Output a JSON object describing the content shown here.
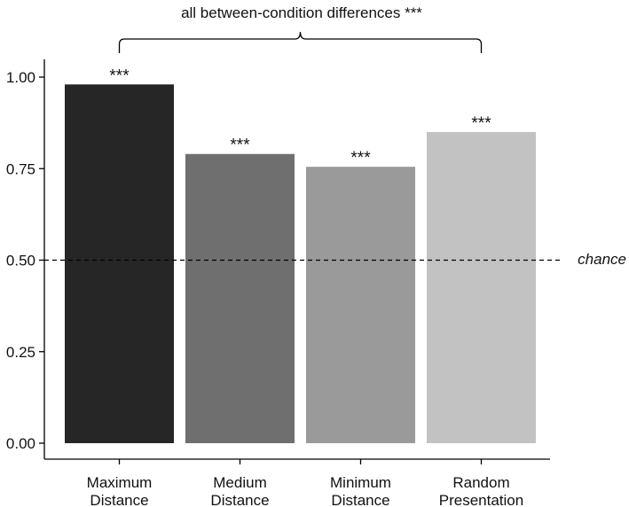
{
  "chart_data": {
    "type": "bar",
    "categories": [
      [
        "Maximum",
        "Distance"
      ],
      [
        "Medium",
        "Distance"
      ],
      [
        "Minimum",
        "Distance"
      ],
      [
        "Random",
        "Presentation"
      ]
    ],
    "values": [
      0.98,
      0.79,
      0.755,
      0.85
    ],
    "bar_colors": [
      "#262626",
      "#6f6f6f",
      "#9a9a9a",
      "#c2c2c2"
    ],
    "bar_annotations": [
      "***",
      "***",
      "***",
      "***"
    ],
    "ylim": [
      0,
      1.0
    ],
    "yticks": [
      "0.00",
      "0.25",
      "0.50",
      "0.75",
      "1.00"
    ],
    "ytick_values": [
      0,
      0.25,
      0.5,
      0.75,
      1.0
    ],
    "reference_line": {
      "value": 0.5,
      "label": "chance",
      "style": "dashed"
    },
    "bracket_label": "all between-condition differences ***",
    "grid": false
  }
}
